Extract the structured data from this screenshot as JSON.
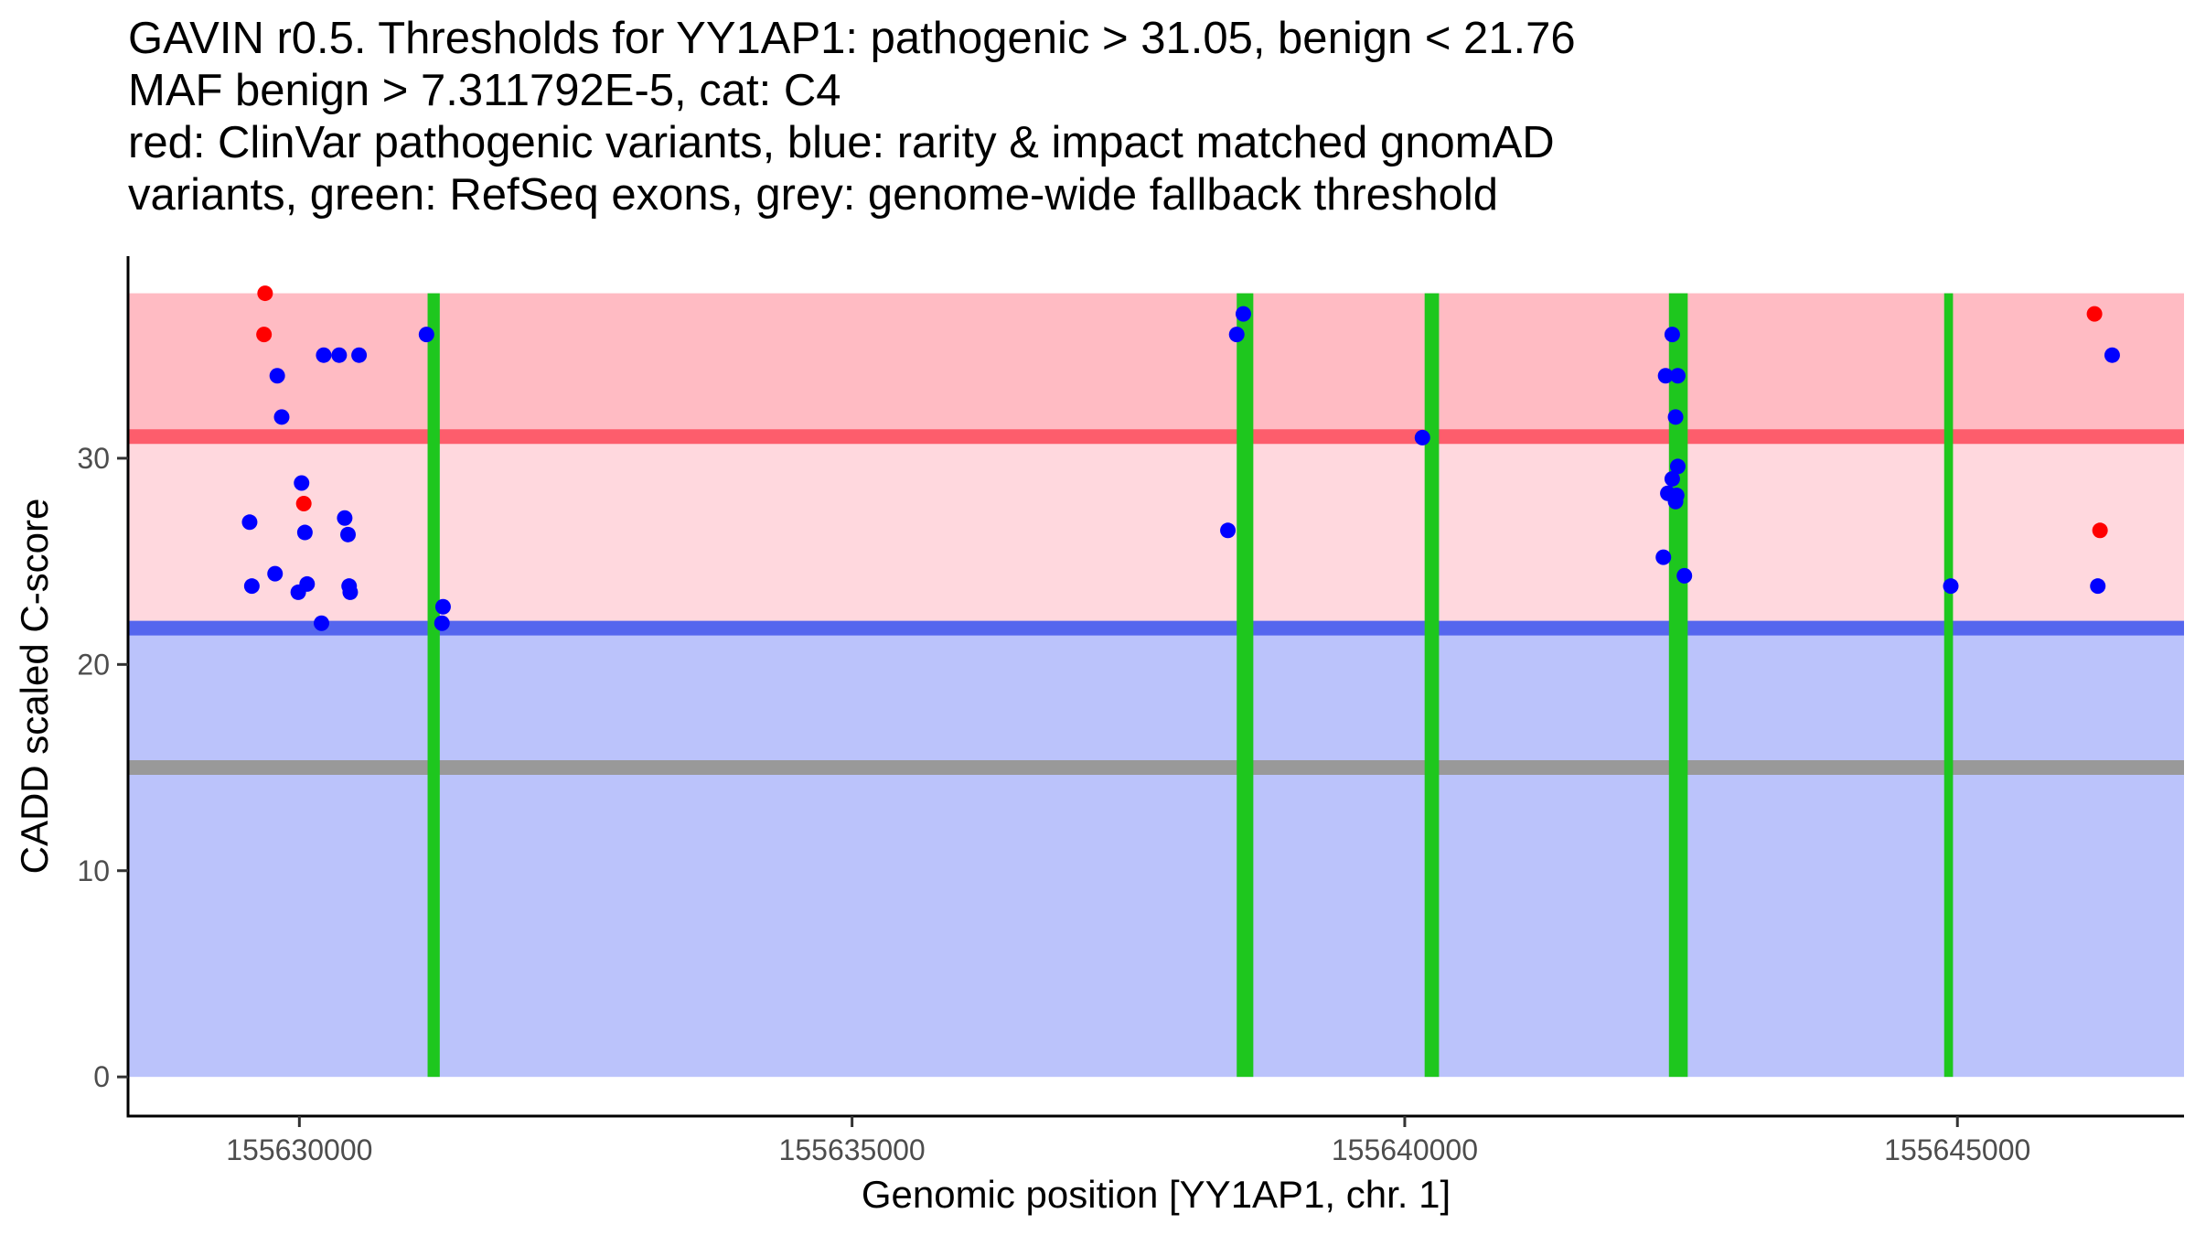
{
  "chart_data": {
    "type": "scatter",
    "title_lines": [
      "GAVIN r0.5. Thresholds for YY1AP1: pathogenic > 31.05, benign < 21.76",
      "MAF benign > 7.311792E-5, cat: C4",
      "red: ClinVar pathogenic variants, blue: rarity & impact matched gnomAD",
      "variants, green: RefSeq exons, grey: genome-wide fallback threshold"
    ],
    "xlabel": "Genomic position [YY1AP1, chr. 1]",
    "ylabel": "CADD scaled C-score",
    "xlim": [
      155628450,
      155647050
    ],
    "ylim": [
      -1.9,
      39.8
    ],
    "x_ticks": [
      155630000,
      155635000,
      155640000,
      155645000
    ],
    "x_tick_labels": [
      "155630000",
      "155635000",
      "155640000",
      "155645000"
    ],
    "y_ticks": [
      0,
      10,
      20,
      30
    ],
    "y_tick_labels": [
      "0",
      "10",
      "20",
      "30"
    ],
    "bands": [
      {
        "name": "pathogenic-region",
        "from": 31.05,
        "to": 38,
        "color": "#ffbbc3"
      },
      {
        "name": "intermediate-region",
        "from": 21.76,
        "to": 31.05,
        "color": "#ffd8de"
      },
      {
        "name": "benign-region",
        "from": 0,
        "to": 21.76,
        "color": "#bbc3fb"
      }
    ],
    "threshold_lines": [
      {
        "name": "pathogenic-threshold",
        "y": 31.05,
        "color": "#fd5d6c"
      },
      {
        "name": "benign-threshold",
        "y": 21.76,
        "color": "#5566ee"
      },
      {
        "name": "genome-wide-fallback-threshold",
        "y": 15,
        "color": "#999999"
      }
    ],
    "exons": [
      {
        "start": 155631160,
        "end": 155631270
      },
      {
        "start": 155638480,
        "end": 155638630
      },
      {
        "start": 155640180,
        "end": 155640310
      },
      {
        "start": 155642390,
        "end": 155642560
      },
      {
        "start": 155644880,
        "end": 155644960
      }
    ],
    "series": [
      {
        "name": "ClinVar pathogenic",
        "color": "#ff0000",
        "points": [
          {
            "x": 155629690,
            "y": 38
          },
          {
            "x": 155629680,
            "y": 36
          },
          {
            "x": 155630040,
            "y": 27.8
          },
          {
            "x": 155646240,
            "y": 37
          },
          {
            "x": 155646290,
            "y": 26.5
          }
        ]
      },
      {
        "name": "gnomAD matched",
        "color": "#0000ff",
        "points": [
          {
            "x": 155629550,
            "y": 26.9
          },
          {
            "x": 155629570,
            "y": 23.8
          },
          {
            "x": 155629800,
            "y": 34
          },
          {
            "x": 155629840,
            "y": 32
          },
          {
            "x": 155629780,
            "y": 24.4
          },
          {
            "x": 155629990,
            "y": 23.5
          },
          {
            "x": 155630020,
            "y": 28.8
          },
          {
            "x": 155630050,
            "y": 26.4
          },
          {
            "x": 155630070,
            "y": 23.9
          },
          {
            "x": 155630220,
            "y": 35
          },
          {
            "x": 155630360,
            "y": 35
          },
          {
            "x": 155630540,
            "y": 35
          },
          {
            "x": 155630200,
            "y": 22
          },
          {
            "x": 155630410,
            "y": 27.1
          },
          {
            "x": 155630440,
            "y": 26.3
          },
          {
            "x": 155630450,
            "y": 23.8
          },
          {
            "x": 155630460,
            "y": 23.5
          },
          {
            "x": 155631150,
            "y": 36
          },
          {
            "x": 155631300,
            "y": 22.8
          },
          {
            "x": 155631290,
            "y": 22
          },
          {
            "x": 155638400,
            "y": 26.5
          },
          {
            "x": 155638480,
            "y": 36
          },
          {
            "x": 155638540,
            "y": 37
          },
          {
            "x": 155640160,
            "y": 31
          },
          {
            "x": 155642360,
            "y": 34
          },
          {
            "x": 155642470,
            "y": 34
          },
          {
            "x": 155642420,
            "y": 36
          },
          {
            "x": 155642450,
            "y": 32
          },
          {
            "x": 155642470,
            "y": 29.6
          },
          {
            "x": 155642420,
            "y": 29
          },
          {
            "x": 155642380,
            "y": 28.3
          },
          {
            "x": 155642460,
            "y": 28.2
          },
          {
            "x": 155642450,
            "y": 27.9
          },
          {
            "x": 155642340,
            "y": 25.2
          },
          {
            "x": 155642530,
            "y": 24.3
          },
          {
            "x": 155644940,
            "y": 23.8
          },
          {
            "x": 155646270,
            "y": 23.8
          },
          {
            "x": 155646400,
            "y": 35
          }
        ]
      }
    ]
  }
}
